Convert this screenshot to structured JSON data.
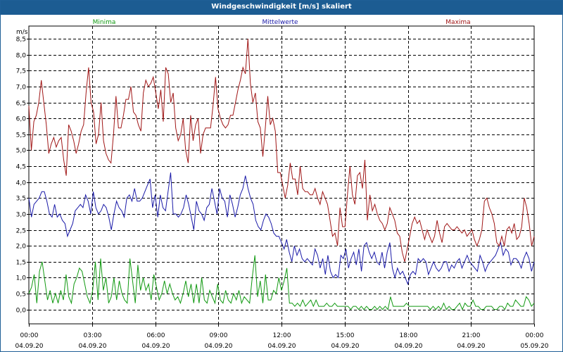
{
  "window": {
    "title": "Windgeschwindigkeit [m/s] skaliert"
  },
  "chart_data": {
    "type": "line",
    "title": "Windgeschwindigkeit [m/s] skaliert",
    "ylabel": "m/s",
    "ylim": [
      -0.45,
      8.9
    ],
    "yticks": [
      0.0,
      0.5,
      1.0,
      1.5,
      2.0,
      2.5,
      3.0,
      3.5,
      4.0,
      4.5,
      5.0,
      5.5,
      6.0,
      6.5,
      7.0,
      7.5,
      8.0,
      8.5
    ],
    "ytick_labels": [
      "0,0",
      "0,5",
      "1,0",
      "1,5",
      "2,0",
      "2,5",
      "3,0",
      "3,5",
      "4,0",
      "4,5",
      "5,0",
      "5,5",
      "6,0",
      "6,5",
      "7,0",
      "7,5",
      "8,0",
      "8,5"
    ],
    "xlim": [
      0,
      24
    ],
    "xticks": [
      {
        "time": "00:00",
        "date": "04.09.20"
      },
      {
        "time": "03:00",
        "date": "04.09.20"
      },
      {
        "time": "06:00",
        "date": "04.09.20"
      },
      {
        "time": "09:00",
        "date": "04.09.20"
      },
      {
        "time": "12:00",
        "date": "04.09.20"
      },
      {
        "time": "15:00",
        "date": "04.09.20"
      },
      {
        "time": "18:00",
        "date": "04.09.20"
      },
      {
        "time": "21:00",
        "date": "04.09.20"
      },
      {
        "time": "00:00",
        "date": "05.09.20"
      }
    ],
    "grid": true,
    "legend_position": "top",
    "series": [
      {
        "name": "Minima",
        "color": "#119911",
        "values": [
          0.5,
          0.7,
          1.1,
          0.2,
          1.2,
          1.5,
          0.9,
          0.3,
          0.6,
          0.2,
          0.5,
          0.2,
          0.6,
          0.3,
          1.1,
          0.4,
          0.2,
          0.8,
          1.0,
          1.3,
          1.2,
          0.8,
          0.4,
          0.2,
          0.6,
          1.5,
          0.3,
          1.6,
          0.6,
          1.0,
          0.2,
          0.4,
          1.0,
          0.3,
          0.9,
          0.5,
          0.3,
          0.2,
          1.6,
          0.9,
          0.2,
          1.4,
          0.6,
          1.0,
          0.6,
          0.8,
          0.3,
          1.1,
          0.7,
          0.3,
          0.5,
          0.9,
          0.5,
          0.8,
          0.5,
          0.3,
          0.4,
          0.2,
          0.5,
          0.9,
          0.4,
          0.8,
          0.2,
          0.8,
          0.2,
          1.0,
          0.3,
          0.2,
          0.6,
          0.4,
          0.2,
          0.8,
          0.3,
          0.2,
          0.6,
          0.3,
          0.2,
          0.5,
          0.3,
          0.6,
          0.2,
          0.4,
          0.3,
          0.2,
          1.0,
          1.7,
          0.4,
          0.9,
          0.2,
          1.1,
          0.3,
          0.3,
          0.6,
          0.5,
          1.0,
          0.6,
          0.9,
          1.3,
          0.2,
          0.2,
          0.1,
          0.2,
          0.1,
          0.3,
          0.1,
          0.2,
          0.3,
          0.1,
          0.3,
          0.1,
          0.1,
          0.1,
          0.2,
          0.1,
          0.1,
          0.2,
          0.1,
          0.1,
          0.1,
          0.1,
          0.1,
          0.0,
          0.1,
          0.1,
          0.0,
          0.1,
          0.0,
          0.1,
          0.0,
          0.0,
          0.1,
          0.0,
          0.1,
          0.0,
          0.1,
          0.0,
          0.4,
          0.1,
          0.1,
          0.1,
          0.1,
          0.1,
          0.2,
          0.1,
          0.1,
          0.1,
          0.1,
          0.1,
          0.1,
          0.1,
          0.1,
          0.0,
          0.1,
          0.0,
          0.1,
          0.0,
          0.2,
          0.0,
          0.1,
          0.0,
          0.0,
          0.1,
          0.2,
          0.0,
          0.2,
          0.1,
          0.1,
          0.3,
          0.1,
          0.1,
          0.0,
          0.0,
          0.1,
          0.1,
          0.1,
          0.0,
          0.0,
          0.1,
          0.1,
          0.0,
          0.2,
          0.1,
          0.1,
          0.3,
          0.2,
          0.1,
          0.1,
          0.4,
          0.3,
          0.1,
          0.2
        ]
      },
      {
        "name": "Mittelwerte",
        "color": "#1a1aa8",
        "values": [
          3.5,
          2.9,
          3.3,
          3.4,
          3.5,
          3.7,
          3.7,
          3.4,
          3.0,
          2.9,
          3.3,
          2.9,
          3.0,
          2.8,
          2.7,
          2.3,
          2.5,
          2.7,
          3.1,
          3.2,
          3.3,
          3.2,
          3.6,
          3.4,
          3.0,
          3.7,
          3.2,
          3.0,
          3.1,
          3.3,
          3.2,
          2.9,
          2.5,
          3.0,
          3.4,
          3.2,
          3.1,
          2.9,
          3.5,
          3.6,
          3.4,
          3.8,
          3.4,
          3.4,
          3.5,
          3.7,
          3.9,
          4.1,
          3.2,
          3.6,
          2.9,
          3.6,
          3.2,
          3.1,
          3.7,
          4.3,
          3.0,
          3.0,
          2.9,
          3.0,
          3.2,
          3.6,
          3.3,
          2.9,
          2.5,
          3.4,
          3.1,
          3.0,
          2.8,
          3.2,
          3.3,
          3.8,
          3.4,
          3.0,
          3.8,
          3.5,
          3.4,
          2.9,
          3.6,
          3.3,
          2.9,
          3.2,
          3.6,
          3.8,
          4.2,
          3.8,
          3.5,
          3.3,
          2.8,
          2.6,
          2.5,
          2.8,
          3.0,
          2.9,
          2.7,
          2.4,
          2.3,
          2.3,
          2.1,
          1.9,
          2.2,
          1.8,
          1.5,
          2.0,
          1.7,
          1.9,
          1.6,
          1.5,
          1.6,
          1.5,
          1.4,
          1.9,
          1.7,
          1.3,
          1.6,
          1.1,
          1.7,
          1.2,
          1.0,
          1.1,
          1.0,
          1.7,
          1.6,
          1.9,
          1.3,
          1.6,
          1.8,
          1.4,
          1.9,
          1.2,
          2.0,
          2.1,
          1.8,
          1.6,
          1.8,
          1.5,
          1.4,
          1.8,
          1.3,
          1.8,
          2.1,
          1.3,
          1.0,
          1.3,
          1.1,
          1.2,
          1.0,
          0.8,
          1.1,
          1.2,
          1.1,
          1.6,
          1.5,
          1.6,
          1.5,
          1.1,
          1.3,
          1.5,
          1.3,
          1.2,
          1.3,
          1.5,
          1.5,
          1.2,
          1.4,
          1.3,
          1.5,
          1.6,
          1.3,
          1.5,
          1.7,
          1.5,
          1.4,
          1.3,
          1.2,
          1.7,
          1.5,
          1.2,
          1.4,
          1.5,
          1.6,
          1.7,
          1.9,
          2.1,
          1.7,
          1.9,
          1.8,
          1.4,
          1.6,
          1.6,
          1.5,
          1.3,
          1.6,
          1.8,
          1.6,
          1.2,
          1.5
        ]
      },
      {
        "name": "Maxima",
        "color": "#a01616",
        "values": [
          6.4,
          5.0,
          5.9,
          6.1,
          6.5,
          7.2,
          6.5,
          5.8,
          4.9,
          5.2,
          5.4,
          5.1,
          5.3,
          5.4,
          4.7,
          4.2,
          5.8,
          5.6,
          5.3,
          4.9,
          5.2,
          5.6,
          5.8,
          6.8,
          7.6,
          6.5,
          6.2,
          5.2,
          5.5,
          6.5,
          5.3,
          4.9,
          4.7,
          4.6,
          5.5,
          6.7,
          5.7,
          5.7,
          6.1,
          6.6,
          6.6,
          7.0,
          6.2,
          6.1,
          5.8,
          5.6,
          6.8,
          7.2,
          7.0,
          7.1,
          7.3,
          6.8,
          6.3,
          6.9,
          5.9,
          7.6,
          7.4,
          6.5,
          6.8,
          5.7,
          5.3,
          5.5,
          6.0,
          5.0,
          4.6,
          6.1,
          5.3,
          5.8,
          6.0,
          4.9,
          5.5,
          5.7,
          5.7,
          5.7,
          6.4,
          7.3,
          6.3,
          6.0,
          5.8,
          5.7,
          5.8,
          6.1,
          6.1,
          6.5,
          6.9,
          7.2,
          7.6,
          7.4,
          8.5,
          7.1,
          6.5,
          6.8,
          5.9,
          5.7,
          4.8,
          5.7,
          6.7,
          5.8,
          6.0,
          5.6,
          4.3,
          4.3,
          3.9,
          3.5,
          3.9,
          4.6,
          4.1,
          4.1,
          3.6,
          4.5,
          3.8,
          3.7,
          3.7,
          3.6,
          3.6,
          3.8,
          3.5,
          3.3,
          3.7,
          3.5,
          3.3,
          2.8,
          2.3,
          2.4,
          2.0,
          3.2,
          2.6,
          2.6,
          3.6,
          4.5,
          3.6,
          3.3,
          4.2,
          4.3,
          3.8,
          4.7,
          2.8,
          3.6,
          3.1,
          3.3,
          3.0,
          2.8,
          2.7,
          2.5,
          2.7,
          3.2,
          3.0,
          2.8,
          2.4,
          2.3,
          1.8,
          1.5,
          1.9,
          2.3,
          2.7,
          2.9,
          2.7,
          2.8,
          2.5,
          2.2,
          2.5,
          2.3,
          2.1,
          2.3,
          2.8,
          2.4,
          2.1,
          2.6,
          2.7,
          2.6,
          2.5,
          2.5,
          2.6,
          2.5,
          2.4,
          2.5,
          2.3,
          2.4,
          2.5,
          2.2,
          2.0,
          2.2,
          2.5,
          3.4,
          3.5,
          3.2,
          3.0,
          2.7,
          2.1,
          2.0,
          2.3,
          2.0,
          2.5,
          2.6,
          2.4,
          2.7,
          2.2,
          2.3,
          2.6,
          3.5,
          3.2,
          2.7,
          2.0,
          2.3
        ]
      }
    ]
  }
}
